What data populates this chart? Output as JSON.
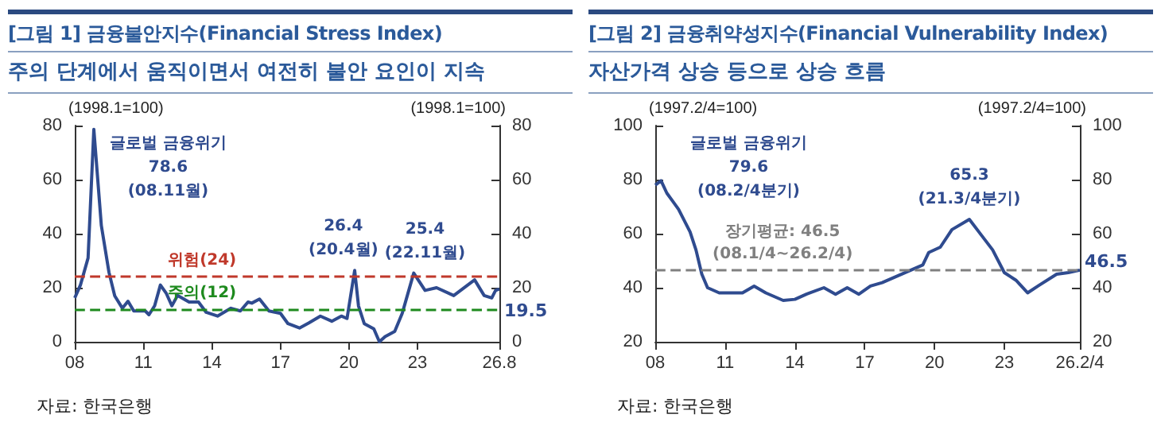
{
  "chart_data": [
    {
      "type": "line",
      "title": "[그림 1] 금융불안지수(Financial Stress Index)",
      "subtitle": "주의 단계에서 움직이면서 여전히 불안 요인이 지속",
      "ylabel": "(1998.1=100)",
      "y2label": "(1998.1=100)",
      "x": [
        "2008-01",
        "2008-04",
        "2008-08",
        "2008-11",
        "2009-03",
        "2009-07",
        "2009-10",
        "2010-02",
        "2010-05",
        "2010-08",
        "2011-02",
        "2011-04",
        "2011-07",
        "2011-10",
        "2012-01",
        "2012-04",
        "2012-07",
        "2013-01",
        "2013-06",
        "2013-10",
        "2014-04",
        "2014-11",
        "2015-04",
        "2015-08",
        "2015-10",
        "2016-02",
        "2016-07",
        "2017-01",
        "2017-05",
        "2017-11",
        "2018-04",
        "2018-10",
        "2019-04",
        "2019-09",
        "2019-12",
        "2020-04",
        "2020-06",
        "2020-09",
        "2021-02",
        "2021-05",
        "2021-08",
        "2022-01",
        "2022-05",
        "2022-11",
        "2023-05",
        "2023-11",
        "2024-08",
        "2025-07",
        "2025-12",
        "2026-04",
        "2026-06",
        "2026-08"
      ],
      "series": [
        {
          "color": "#2f4b8f",
          "values": [
            16.2,
            21,
            31,
            78.6,
            43,
            25.7,
            17,
            12.4,
            15,
            11.4,
            11.4,
            10,
            13.3,
            21,
            18,
            13.3,
            17.1,
            14.7,
            14.7,
            10.9,
            9.5,
            12.4,
            11.4,
            14.7,
            14.3,
            15.8,
            11.4,
            10.5,
            6.7,
            5.1,
            7,
            9.5,
            7.6,
            9.5,
            8.6,
            26.4,
            13.3,
            6.7,
            4.8,
            0,
            1.9,
            3.8,
            10.5,
            25.4,
            19,
            20,
            17.1,
            22.9,
            17.1,
            16.2,
            19,
            19.5
          ]
        }
      ],
      "xlim": [
        "2008-01",
        "2026-08"
      ],
      "xticks": [
        {
          "value": "2008-01",
          "label": "08"
        },
        {
          "value": "2011-01",
          "label": "11"
        },
        {
          "value": "2014-01",
          "label": "14"
        },
        {
          "value": "2017-01",
          "label": "17"
        },
        {
          "value": "2020-01",
          "label": "20"
        },
        {
          "value": "2023-01",
          "label": "23"
        },
        {
          "value": "2026-08",
          "label": "26.8"
        }
      ],
      "ylim": [
        0,
        80
      ],
      "yticks": [
        0,
        20,
        40,
        60,
        80
      ],
      "y2lim": [
        0,
        80
      ],
      "y2ticks": [
        0,
        20,
        40,
        60,
        80
      ],
      "ref_lines": [
        {
          "axis": "y",
          "value": 24,
          "label": "위험(24)",
          "color": "#c0392b",
          "line_style": "dashed"
        },
        {
          "axis": "y",
          "value": 12,
          "label": "주의(12)",
          "color": "#1e8a1e",
          "line_style": "dashed"
        }
      ],
      "annotations": [
        {
          "text": "글로벌 금융위기\n78.6\n(08.11월)",
          "x": "2008-11",
          "y": 78.6
        },
        {
          "text": "26.4\n(20.4월)",
          "x": "2020-04",
          "y": 26.4
        },
        {
          "text": "25.4\n(22.11월)",
          "x": "2022-11",
          "y": 25.4
        },
        {
          "text": "19.5",
          "x": "2026-08",
          "y": 19.5
        },
        "자료: 한국은행"
      ],
      "marker": "none",
      "line_style": "solid",
      "grid": false
    },
    {
      "type": "line",
      "title": "[그림 2] 금융취약성지수(Financial Vulnerability Index)",
      "subtitle": "자산가격 상승 등으로 상승 흐름",
      "ylabel": "(1997.2/4=100)",
      "y2label": "(1997.2/4=100)",
      "x": [
        "2008-01",
        "2008-04",
        "2008-07",
        "2008-10",
        "2009-01",
        "2009-07",
        "2009-10",
        "2010-01",
        "2010-04",
        "2010-10",
        "2011-10",
        "2012-04",
        "2012-10",
        "2013-07",
        "2014-01",
        "2014-07",
        "2015-04",
        "2015-10",
        "2016-04",
        "2016-10",
        "2017-04",
        "2017-10",
        "2018-10",
        "2019-07",
        "2019-10",
        "2020-04",
        "2020-10",
        "2021-07",
        "2022-01",
        "2022-07",
        "2023-01",
        "2023-07",
        "2024-01",
        "2024-07",
        "2025-04",
        "2025-10",
        "2026-04"
      ],
      "series": [
        {
          "color": "#2f4b8f",
          "values": [
            78,
            79.6,
            75,
            72,
            69,
            60.6,
            54,
            45,
            40,
            38.1,
            38.1,
            40.6,
            38.1,
            35.3,
            35.7,
            37.6,
            40,
            37.6,
            40,
            37.6,
            40.6,
            41.9,
            45.6,
            48.4,
            53,
            55,
            61.5,
            65.3,
            59.6,
            54,
            45.6,
            42.8,
            38.1,
            40.9,
            45,
            45.6,
            46.5
          ]
        }
      ],
      "xlim": [
        "2008-01",
        "2026-04"
      ],
      "xticks": [
        {
          "value": "2008-01",
          "label": "08"
        },
        {
          "value": "2011-01",
          "label": "11"
        },
        {
          "value": "2014-01",
          "label": "14"
        },
        {
          "value": "2017-01",
          "label": "17"
        },
        {
          "value": "2020-01",
          "label": "20"
        },
        {
          "value": "2023-01",
          "label": "23"
        },
        {
          "value": "2026-04",
          "label": "26.2/4"
        }
      ],
      "ylim": [
        20,
        100
      ],
      "yticks": [
        20,
        40,
        60,
        80,
        100
      ],
      "y2lim": [
        20,
        100
      ],
      "y2ticks": [
        20,
        40,
        60,
        80,
        100
      ],
      "ref_lines": [
        {
          "axis": "y",
          "value": 46.5,
          "label": "장기평균: 46.5\n(08.1/4~26.2/4)",
          "color": "#808080",
          "line_style": "dashed"
        }
      ],
      "annotations": [
        {
          "text": "글로벌 금융위기\n79.6\n(08.2/4분기)",
          "x": "2008-04",
          "y": 79.6
        },
        {
          "text": "65.3\n(21.3/4분기)",
          "x": "2021-07",
          "y": 65.3
        },
        {
          "text": "46.5",
          "x": "2026-04",
          "y": 46.5
        },
        "자료: 한국은행"
      ],
      "marker": "none",
      "line_style": "solid",
      "grid": false
    }
  ]
}
